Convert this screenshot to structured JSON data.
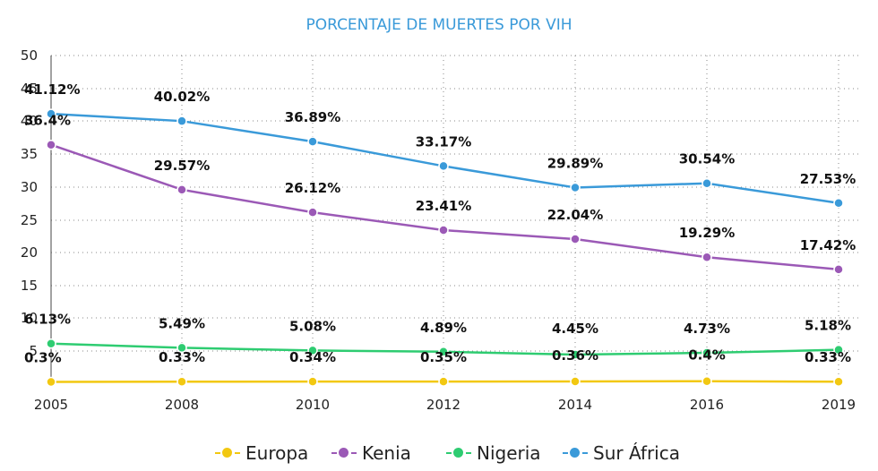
{
  "chart_data": {
    "type": "line",
    "title": "PORCENTAJE DE MUERTES POR VIH",
    "xlabel": "",
    "ylabel": "",
    "categories": [
      "2005",
      "2008",
      "2010",
      "2012",
      "2014",
      "2016",
      "2019"
    ],
    "y_ticks": [
      "50",
      "45",
      "40",
      "35",
      "30",
      "25",
      "20",
      "15",
      "10",
      "5"
    ],
    "ylim": [
      0,
      50
    ],
    "grid": true,
    "legend_position": "bottom",
    "series": [
      {
        "name": "Europa",
        "color": "#f2c811",
        "values": [
          0.3,
          0.33,
          0.34,
          0.35,
          0.36,
          0.4,
          0.33
        ],
        "labels": [
          "0.3%",
          "0.33%",
          "0.34%",
          "0.35%",
          "0.36%",
          "0.4%",
          "0.33%"
        ]
      },
      {
        "name": "Kenia",
        "color": "#9b59b6",
        "values": [
          36.4,
          29.57,
          26.12,
          23.41,
          22.04,
          19.29,
          17.42
        ],
        "labels": [
          "36.4%",
          "29.57%",
          "26.12%",
          "23.41%",
          "22.04%",
          "19.29%",
          "17.42%"
        ]
      },
      {
        "name": "Nigeria",
        "color": "#2ecc71",
        "values": [
          6.13,
          5.49,
          5.08,
          4.89,
          4.45,
          4.73,
          5.18
        ],
        "labels": [
          "6.13%",
          "5.49%",
          "5.08%",
          "4.89%",
          "4.45%",
          "4.73%",
          "5.18%"
        ]
      },
      {
        "name": "Sur África",
        "color": "#3a9ad9",
        "values": [
          41.12,
          40.02,
          36.89,
          33.17,
          29.89,
          30.54,
          27.53
        ],
        "labels": [
          "41.12%",
          "40.02%",
          "36.89%",
          "33.17%",
          "29.89%",
          "30.54%",
          "27.53%"
        ]
      }
    ]
  }
}
